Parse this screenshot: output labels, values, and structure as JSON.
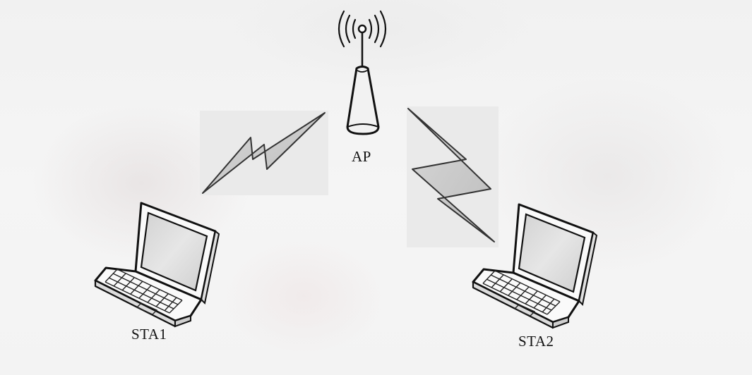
{
  "diagram": {
    "ap_label": "AP",
    "stations": [
      {
        "label": "STA1"
      },
      {
        "label": "STA2"
      }
    ]
  },
  "icons": {
    "access_point": "access-point-icon",
    "laptop": "laptop-icon",
    "wireless_link": "lightning-bolt-icon",
    "radio_waves": "radio-waves-icon"
  },
  "colors": {
    "background": "#f4f4f4",
    "line": "#111111",
    "bolt_fill": "#c8c8c8",
    "panel": "#eaeaea"
  }
}
